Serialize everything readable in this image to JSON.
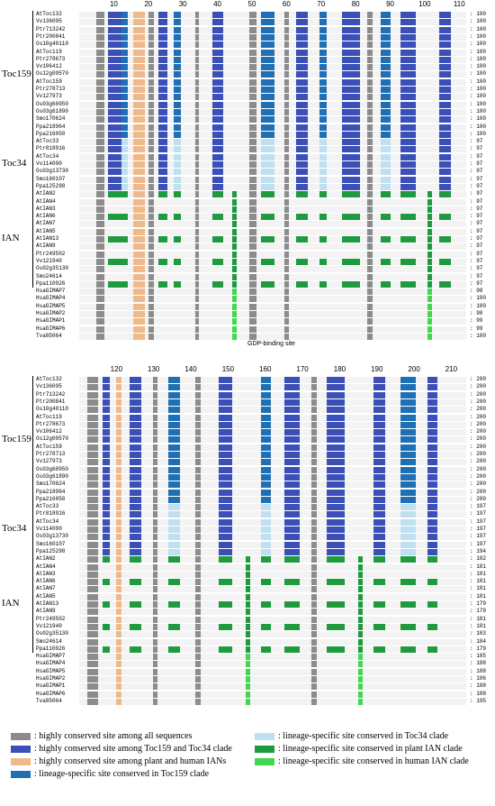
{
  "block1": {
    "ticks": [
      "10",
      "20",
      "30",
      "40",
      "50",
      "60",
      "70",
      "80",
      "90",
      "100",
      "110"
    ],
    "rows": [
      {
        "name": "AtToc132",
        "end": "100"
      },
      {
        "name": "Vv136095",
        "end": "100"
      },
      {
        "name": "Ptr713242",
        "end": "100"
      },
      {
        "name": "Ptr200841",
        "end": "100"
      },
      {
        "name": "Os10g40110",
        "end": "100"
      },
      {
        "name": "AtToc119",
        "end": "100"
      },
      {
        "name": "Ptr278673",
        "end": "100"
      },
      {
        "name": "Vv106412",
        "end": "100"
      },
      {
        "name": "Os12g09570",
        "end": "100"
      },
      {
        "name": "AtToc159",
        "end": "100"
      },
      {
        "name": "Ptr278713",
        "end": "100"
      },
      {
        "name": "Vv127973",
        "end": "100"
      },
      {
        "name": "Os03g60950",
        "end": "100"
      },
      {
        "name": "Os03g61890",
        "end": "100"
      },
      {
        "name": "Smo170624",
        "end": "100"
      },
      {
        "name": "Ppa218964",
        "end": "100"
      },
      {
        "name": "Ppa216050",
        "end": "100"
      },
      {
        "name": "AtToc33",
        "end": "97"
      },
      {
        "name": "Ptr818916",
        "end": "97"
      },
      {
        "name": "AtToc34",
        "end": "97"
      },
      {
        "name": "Vv114090",
        "end": "97"
      },
      {
        "name": "Os03g13730",
        "end": "97"
      },
      {
        "name": "Smo160107",
        "end": "97"
      },
      {
        "name": "Ppa125298",
        "end": "97"
      },
      {
        "name": "AtIAN2",
        "end": "97"
      },
      {
        "name": "AtIAN4",
        "end": "97"
      },
      {
        "name": "AtIAN3",
        "end": "97"
      },
      {
        "name": "AtIAN6",
        "end": "97"
      },
      {
        "name": "AtIAN7",
        "end": "97"
      },
      {
        "name": "AtIAN5",
        "end": "97"
      },
      {
        "name": "AtIAN13",
        "end": "97"
      },
      {
        "name": "AtIAN9",
        "end": "97"
      },
      {
        "name": "Ptr249502",
        "end": "97"
      },
      {
        "name": "Vv121940",
        "end": "97"
      },
      {
        "name": "Os02g35130",
        "end": "97"
      },
      {
        "name": "Smo24614",
        "end": "97"
      },
      {
        "name": "Ppa110926",
        "end": "97"
      },
      {
        "name": "HsaGIMAP7",
        "end": "98"
      },
      {
        "name": "HsaGIMAP4",
        "end": "100"
      },
      {
        "name": "HsaGIMAP5",
        "end": "100"
      },
      {
        "name": "HsaGIMAP2",
        "end": "98"
      },
      {
        "name": "HsaGIMAP1",
        "end": "99"
      },
      {
        "name": "HsaGIMAP6",
        "end": "99"
      },
      {
        "name": "Tva85064",
        "end": "100"
      }
    ],
    "gdp_label": "GDP-binding site"
  },
  "block2": {
    "ticks": [
      "120",
      "130",
      "140",
      "150",
      "160",
      "170",
      "180",
      "190",
      "200",
      "210"
    ],
    "rows": [
      {
        "name": "AtToc132",
        "end": "200"
      },
      {
        "name": "Vv136095",
        "end": "200"
      },
      {
        "name": "Ptr713242",
        "end": "200"
      },
      {
        "name": "Ptr200841",
        "end": "200"
      },
      {
        "name": "Os10g40110",
        "end": "200"
      },
      {
        "name": "AtToc119",
        "end": "200"
      },
      {
        "name": "Ptr278673",
        "end": "200"
      },
      {
        "name": "Vv106412",
        "end": "200"
      },
      {
        "name": "Os12g09570",
        "end": "200"
      },
      {
        "name": "AtToc159",
        "end": "200"
      },
      {
        "name": "Ptr278713",
        "end": "200"
      },
      {
        "name": "Vv127973",
        "end": "200"
      },
      {
        "name": "Os03g60950",
        "end": "200"
      },
      {
        "name": "Os03g61890",
        "end": "200"
      },
      {
        "name": "Smo170624",
        "end": "200"
      },
      {
        "name": "Ppa218964",
        "end": "200"
      },
      {
        "name": "Ppa216050",
        "end": "200"
      },
      {
        "name": "AtToc33",
        "end": "197"
      },
      {
        "name": "Ptr818916",
        "end": "197"
      },
      {
        "name": "AtToc34",
        "end": "197"
      },
      {
        "name": "Vv114090",
        "end": "197"
      },
      {
        "name": "Os03g13730",
        "end": "197"
      },
      {
        "name": "Smo160107",
        "end": "197"
      },
      {
        "name": "Ppa125298",
        "end": "194"
      },
      {
        "name": "AtIAN2",
        "end": "182"
      },
      {
        "name": "AtIAN4",
        "end": "181"
      },
      {
        "name": "AtIAN3",
        "end": "181"
      },
      {
        "name": "AtIAN6",
        "end": "181"
      },
      {
        "name": "AtIAN7",
        "end": "181"
      },
      {
        "name": "AtIAN5",
        "end": "181"
      },
      {
        "name": "AtIAN13",
        "end": "179"
      },
      {
        "name": "AtIAN9",
        "end": "179"
      },
      {
        "name": "Ptr249502",
        "end": "181"
      },
      {
        "name": "Vv121940",
        "end": "181"
      },
      {
        "name": "Os02g35130",
        "end": "183"
      },
      {
        "name": "Smo24614",
        "end": "184"
      },
      {
        "name": "Ppa110926",
        "end": "179"
      },
      {
        "name": "HsaGIMAP7",
        "end": "185"
      },
      {
        "name": "HsaGIMAP4",
        "end": "188"
      },
      {
        "name": "HsaGIMAP5",
        "end": "188"
      },
      {
        "name": "HsaGIMAP2",
        "end": "186"
      },
      {
        "name": "HsaGIMAP1",
        "end": "188"
      },
      {
        "name": "HsaGIMAP6",
        "end": "188"
      },
      {
        "name": "Tva85064",
        "end": "195"
      }
    ]
  },
  "clades": {
    "toc159": "Toc159",
    "toc34": "Toc34",
    "ian": "IAN"
  },
  "colors": {
    "all": "#8c8c8c",
    "toc": "#3a4fb8",
    "plant_human": "#f0b98a",
    "toc159": "#1f6fb4",
    "toc34": "#bfe0f0",
    "plant_ian": "#1f9a3f",
    "human_ian": "#3fd84f",
    "bg": "#f3f3f3"
  },
  "legend": [
    {
      "key": "all",
      "text": ": highly conserved site among all sequences"
    },
    {
      "key": "toc",
      "text": ": highly conserved site among Toc159 and Toc34 clade"
    },
    {
      "key": "plant_human",
      "text": ": highly conserved site among plant and human IANs"
    },
    {
      "key": "toc159",
      "text": ": lineage-specific site conserved in Toc159 clade"
    },
    {
      "key": "toc34",
      "text": ": lineage-specific site conserved in Toc34 clade"
    },
    {
      "key": "plant_ian",
      "text": ": lineage-specific site conserved in plant IAN clade"
    },
    {
      "key": "human_ian",
      "text": ": lineage-specific site conserved in human IAN clade"
    }
  ]
}
